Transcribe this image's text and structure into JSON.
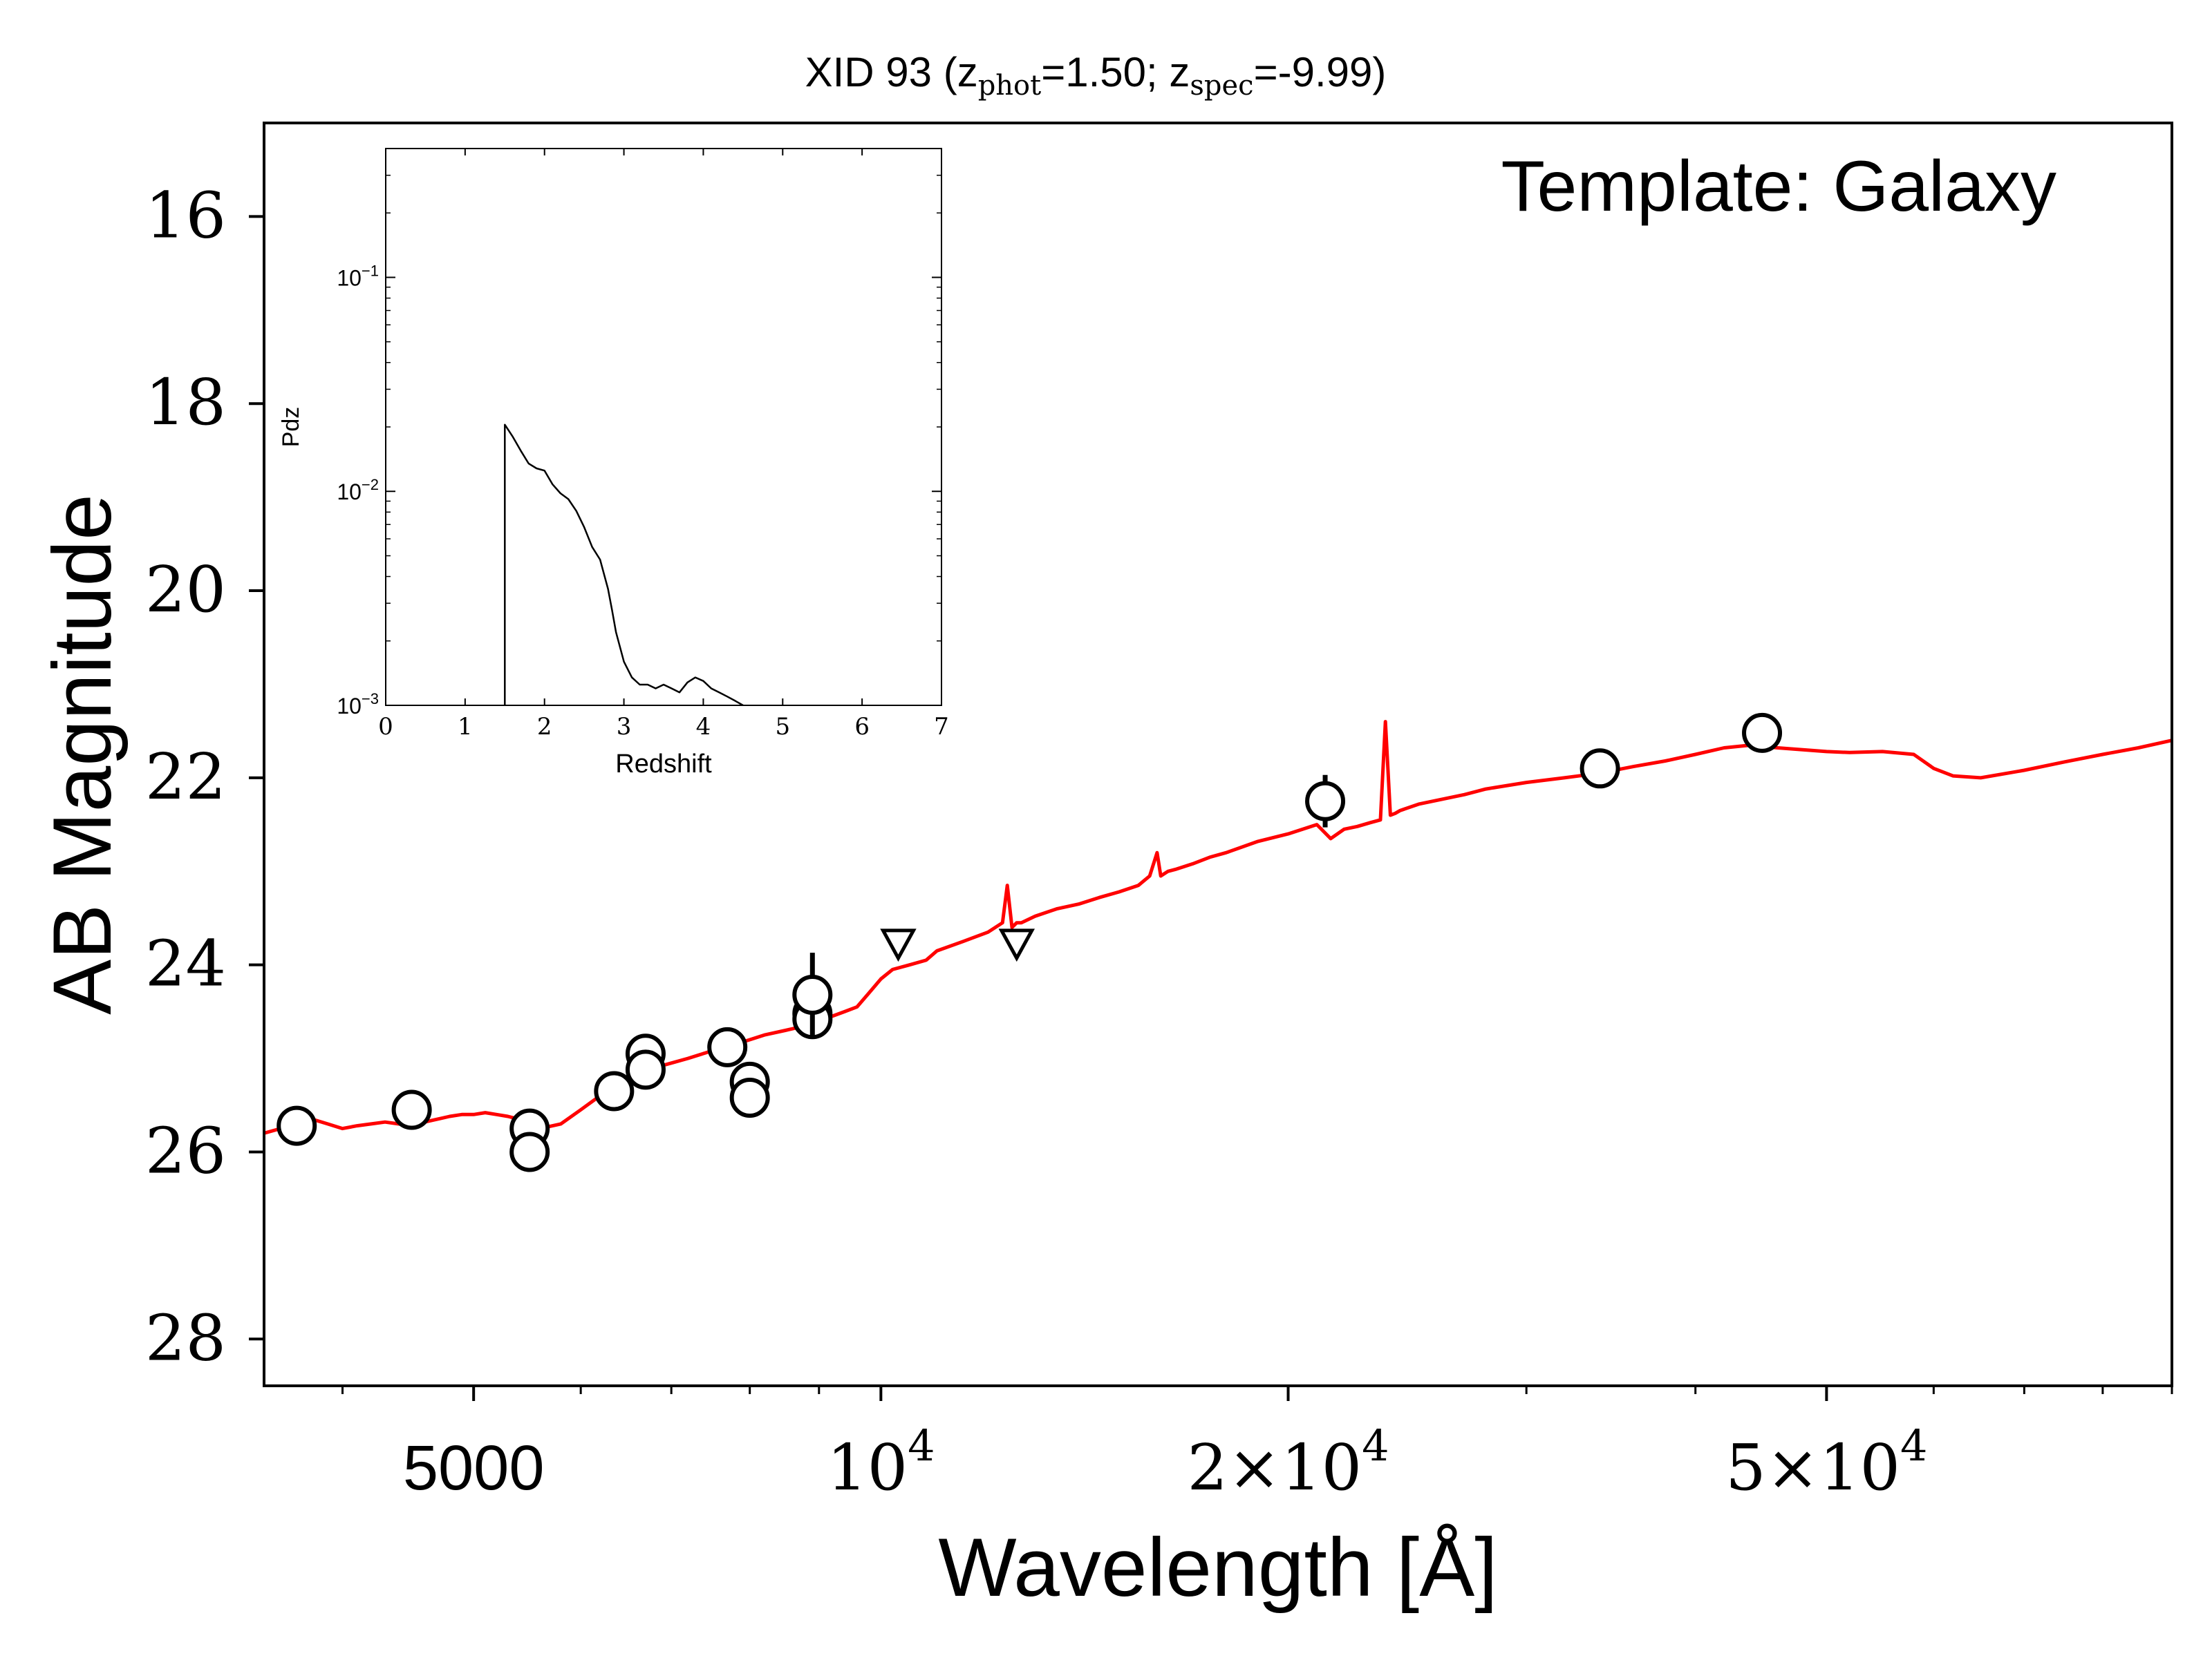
{
  "chart_data": [
    {
      "type": "scatter",
      "title_main": "XID 93 (z",
      "title_sub1": "phot",
      "title_mid": "=1.50; z",
      "title_sub2": "spec",
      "title_end": "=-9.99)",
      "annotation": "Template: Galaxy",
      "xlabel": "Wavelength [Å]",
      "ylabel": "AB Magnitude",
      "x_scale": "log",
      "xlim": [
        3500,
        90000
      ],
      "ylim": [
        28.5,
        15.0
      ],
      "y_inverted": true,
      "x_ticks": [
        {
          "value": 5000,
          "label": "5000"
        },
        {
          "value": 10000,
          "label": "10",
          "exp": "4"
        },
        {
          "value": 20000,
          "label": "2×10",
          "exp": "4"
        },
        {
          "value": 50000,
          "label": "5×10",
          "exp": "4"
        }
      ],
      "y_ticks": [
        16,
        18,
        20,
        22,
        24,
        26,
        28
      ],
      "series": [
        {
          "style": "line",
          "color": "#ff0000",
          "x": [
            3500,
            3600,
            3700,
            3800,
            3900,
            4000,
            4100,
            4200,
            4300,
            4400,
            4500,
            4600,
            4700,
            4800,
            4900,
            5000,
            5100,
            5200,
            5300,
            5400,
            5500,
            5600,
            5800,
            6000,
            6200,
            6400,
            6600,
            6800,
            7000,
            7200,
            7500,
            7800,
            8000,
            8200,
            8500,
            8800,
            9000,
            9200,
            9400,
            9600,
            9800,
            10000,
            10200,
            10500,
            10800,
            11000,
            11500,
            12000,
            12300,
            12400,
            12500,
            12600,
            12700,
            13000,
            13500,
            14000,
            14500,
            15000,
            15500,
            15800,
            16000,
            16100,
            16300,
            16500,
            17000,
            17500,
            18000,
            19000,
            20000,
            21000,
            21500,
            22000,
            22500,
            23000,
            23400,
            23600,
            23800,
            24000,
            24200,
            25000,
            27000,
            28000,
            30000,
            32000,
            34000,
            36000,
            38000,
            40000,
            42000,
            44000,
            46000,
            48000,
            50000,
            52000,
            55000,
            58000,
            60000,
            62000,
            65000,
            70000,
            75000,
            80000,
            85000,
            90000
          ],
          "y": [
            25.8,
            25.75,
            25.7,
            25.65,
            25.7,
            25.75,
            25.72,
            25.7,
            25.68,
            25.7,
            25.72,
            25.68,
            25.65,
            25.62,
            25.6,
            25.6,
            25.58,
            25.6,
            25.62,
            25.65,
            25.7,
            25.75,
            25.7,
            25.55,
            25.4,
            25.28,
            25.2,
            25.1,
            25.05,
            25.0,
            24.92,
            24.85,
            24.8,
            24.75,
            24.7,
            24.65,
            24.6,
            24.55,
            24.5,
            24.45,
            24.3,
            24.15,
            24.05,
            24.0,
            23.95,
            23.85,
            23.75,
            23.65,
            23.55,
            23.15,
            23.6,
            23.55,
            23.55,
            23.48,
            23.4,
            23.35,
            23.28,
            23.22,
            23.15,
            23.05,
            22.8,
            23.05,
            23.0,
            22.98,
            22.92,
            22.85,
            22.8,
            22.68,
            22.6,
            22.5,
            22.65,
            22.55,
            22.52,
            22.48,
            22.45,
            21.4,
            22.4,
            22.38,
            22.35,
            22.28,
            22.18,
            22.12,
            22.05,
            22.0,
            21.95,
            21.88,
            21.82,
            21.75,
            21.68,
            21.65,
            21.68,
            21.7,
            21.72,
            21.73,
            21.72,
            21.75,
            21.9,
            21.98,
            22.0,
            21.92,
            21.83,
            21.75,
            21.68,
            21.6
          ]
        },
        {
          "style": "points",
          "marker": "circle",
          "x": [
            3700,
            4500,
            5500,
            5500,
            6350,
            6700,
            6700,
            7700,
            8000,
            8000,
            8900,
            8900,
            8900,
            34000,
            44800,
            21300
          ],
          "y": [
            25.72,
            25.55,
            25.75,
            26.0,
            25.35,
            24.95,
            25.12,
            24.88,
            25.25,
            25.42,
            24.52,
            24.58,
            24.32,
            21.9,
            21.52,
            22.25
          ],
          "yerr": [
            0.08,
            0.08,
            0.08,
            0.08,
            0.08,
            0.08,
            0.08,
            0.08,
            0.08,
            0.18,
            0.1,
            0.1,
            0.45,
            0.2,
            0.2,
            0.28
          ]
        },
        {
          "style": "points",
          "marker": "triangle-down",
          "x": [
            10300,
            12600
          ],
          "y": [
            23.78,
            23.78
          ]
        }
      ]
    },
    {
      "type": "line",
      "ylabel": "Pdz",
      "xlabel": "Redshift",
      "y_scale": "log",
      "xlim": [
        0,
        7
      ],
      "ylim": [
        0.001,
        0.4
      ],
      "x_ticks": [
        0,
        1,
        2,
        3,
        4,
        5,
        6,
        7
      ],
      "y_ticks": [
        {
          "value": 0.001,
          "label": "10",
          "exp": "−3"
        },
        {
          "value": 0.01,
          "label": "10",
          "exp": "−2"
        },
        {
          "value": 0.1,
          "label": "10",
          "exp": "−1"
        }
      ],
      "series": [
        {
          "color": "#000000",
          "x": [
            1.5,
            1.5,
            1.6,
            1.7,
            1.8,
            1.9,
            2.0,
            2.1,
            2.2,
            2.3,
            2.4,
            2.5,
            2.6,
            2.7,
            2.8,
            2.85,
            2.9,
            3.0,
            3.1,
            3.2,
            3.3,
            3.4,
            3.5,
            3.6,
            3.7,
            3.8,
            3.9,
            4.0,
            4.1,
            4.2,
            4.3,
            4.4,
            4.5
          ],
          "y": [
            0.001,
            0.0205,
            0.018,
            0.0155,
            0.0135,
            0.0128,
            0.0125,
            0.0108,
            0.0098,
            0.0092,
            0.0081,
            0.0068,
            0.0055,
            0.0048,
            0.0035,
            0.0028,
            0.0022,
            0.0016,
            0.00135,
            0.00125,
            0.00125,
            0.0012,
            0.00125,
            0.0012,
            0.00115,
            0.00128,
            0.00135,
            0.0013,
            0.0012,
            0.00115,
            0.0011,
            0.00105,
            0.001
          ]
        }
      ]
    }
  ]
}
